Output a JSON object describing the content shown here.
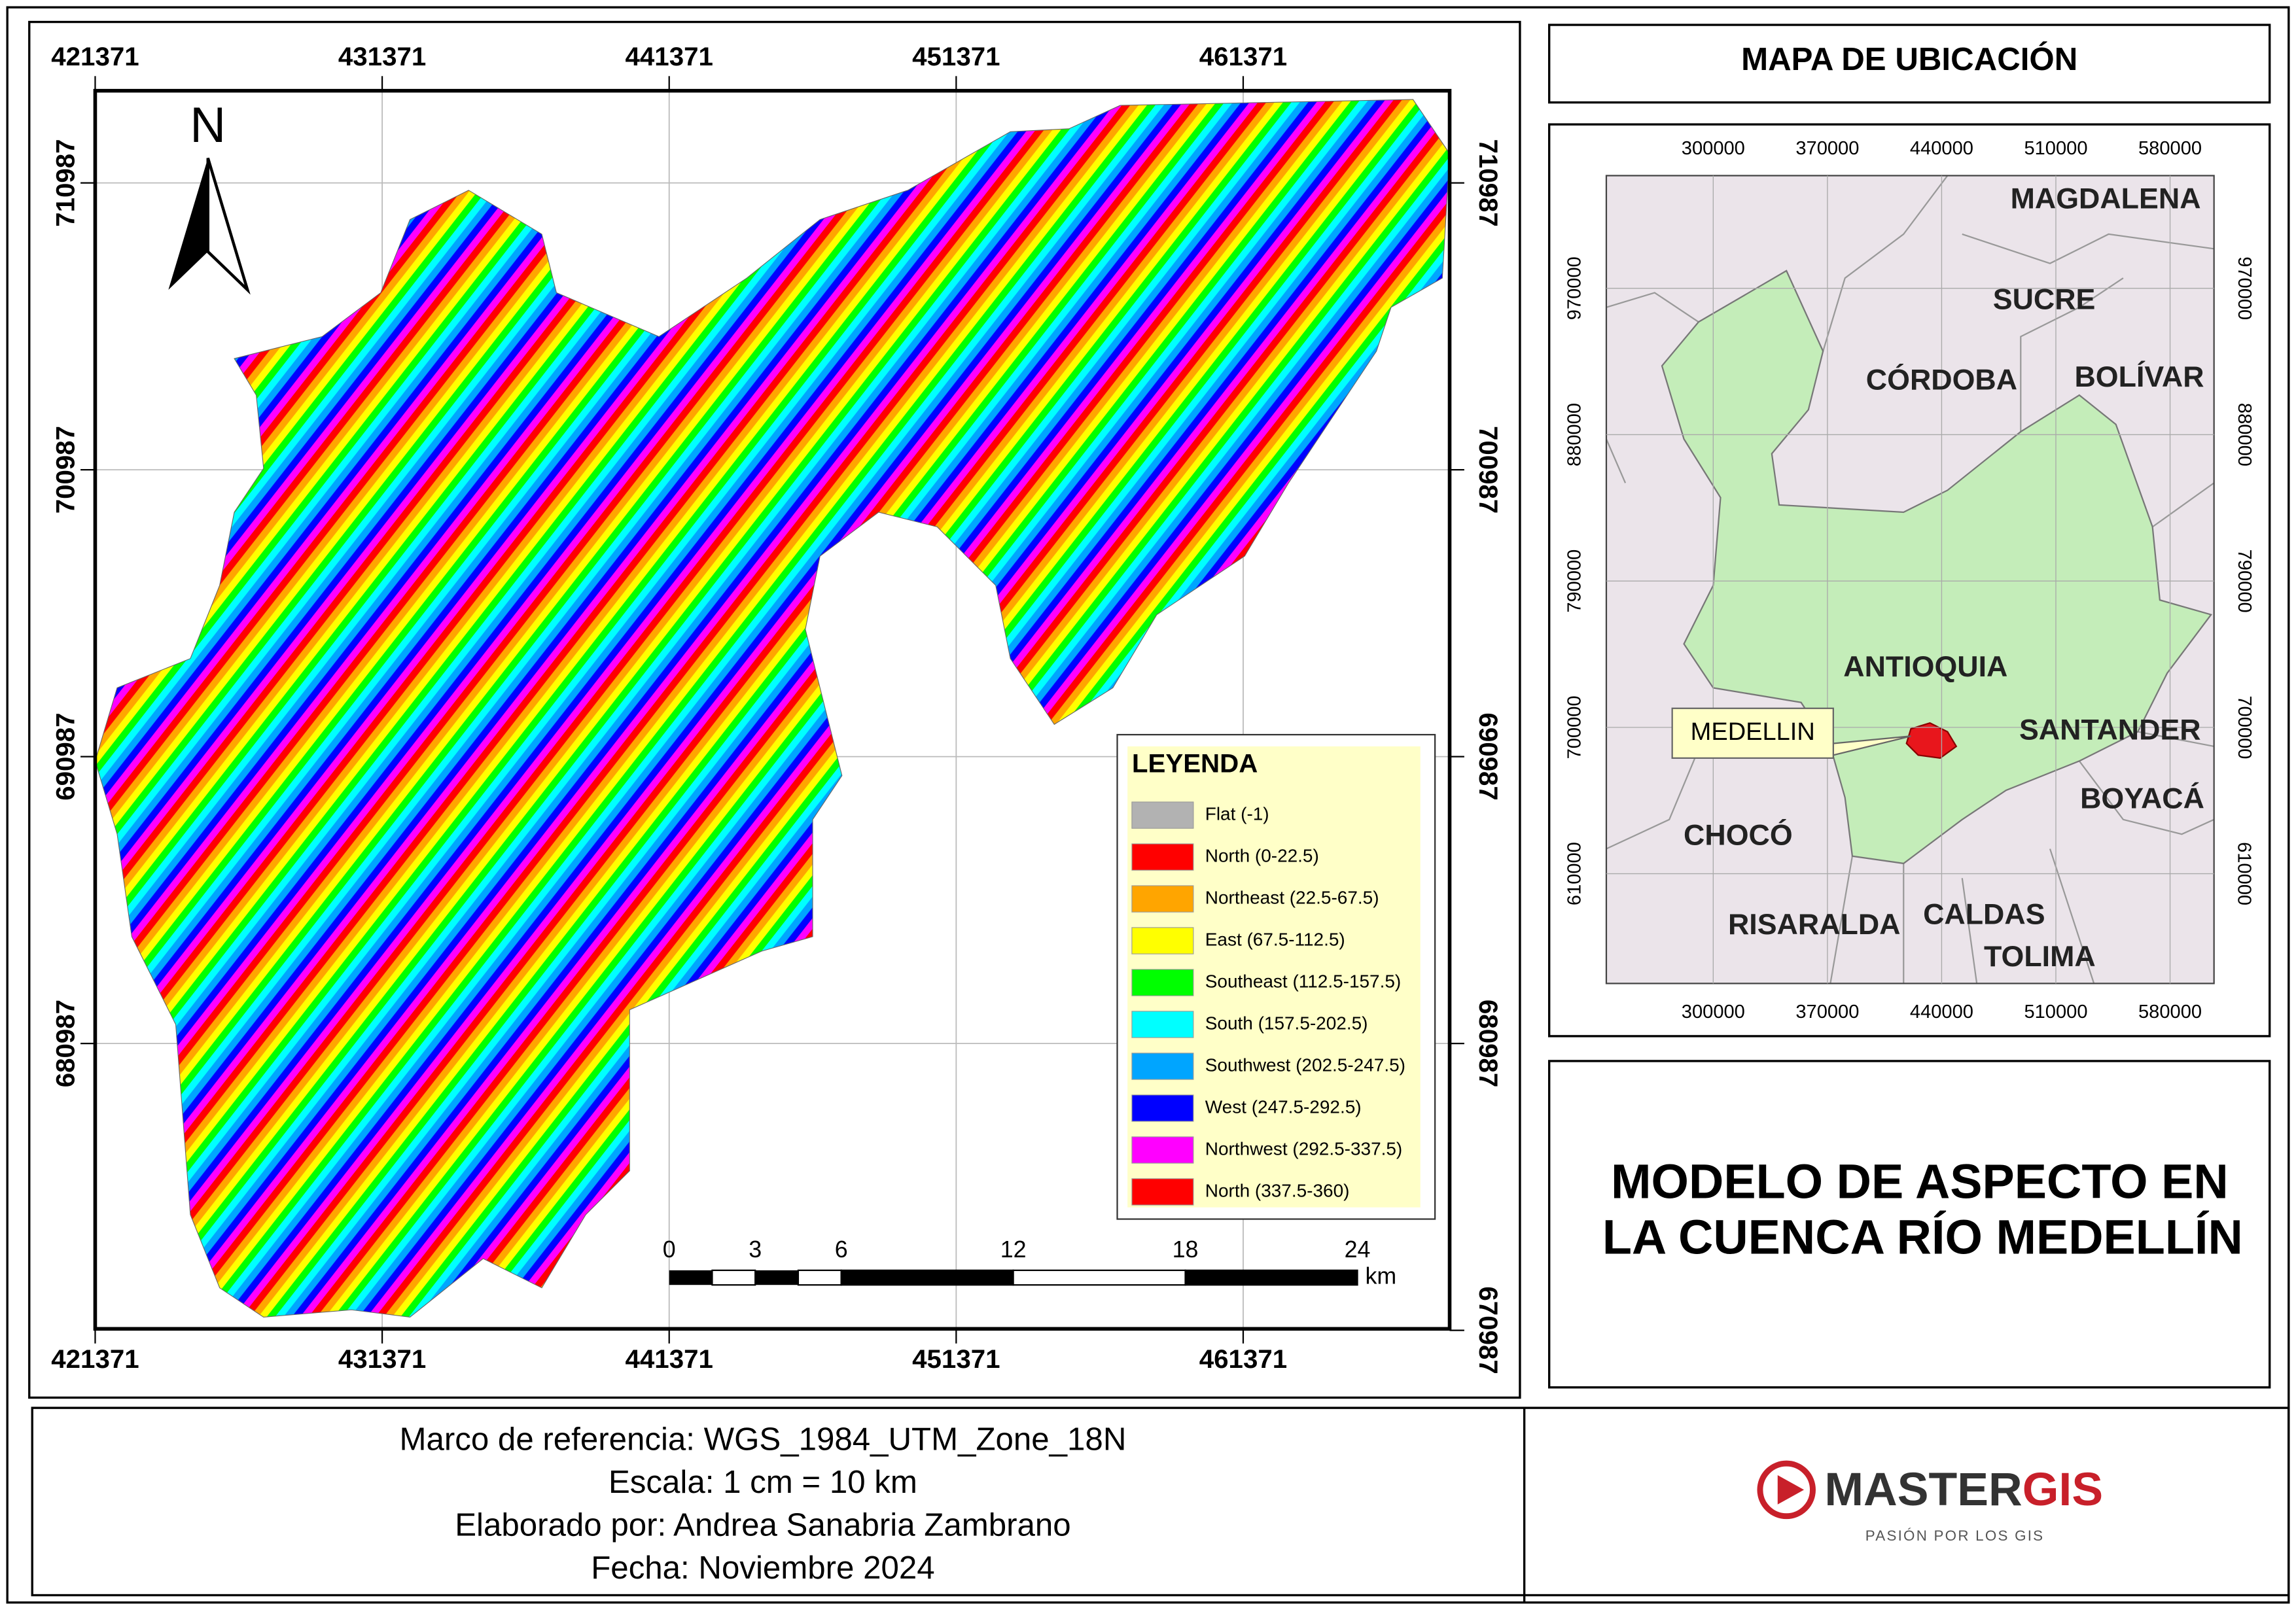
{
  "map": {
    "x_ticks": [
      421371,
      431371,
      441371,
      451371,
      461371
    ],
    "y_ticks": [
      710987,
      700987,
      690987,
      680987,
      670987
    ],
    "north": "N",
    "legend": {
      "title": "LEYENDA",
      "items": [
        {
          "label": "Flat (-1)",
          "color": "#b2b2b2"
        },
        {
          "label": "North (0-22.5)",
          "color": "#ff0000"
        },
        {
          "label": "Northeast (22.5-67.5)",
          "color": "#ffa500"
        },
        {
          "label": "East (67.5-112.5)",
          "color": "#ffff00"
        },
        {
          "label": "Southeast (112.5-157.5)",
          "color": "#00ff00"
        },
        {
          "label": "South (157.5-202.5)",
          "color": "#00ffff"
        },
        {
          "label": "Southwest (202.5-247.5)",
          "color": "#00a5ff"
        },
        {
          "label": "West (247.5-292.5)",
          "color": "#0000ff"
        },
        {
          "label": "Northwest (292.5-337.5)",
          "color": "#ff00ff"
        },
        {
          "label": "North (337.5-360)",
          "color": "#ff0000"
        }
      ]
    },
    "scale_bar": {
      "ticks": [
        0,
        3,
        6,
        12,
        18,
        24
      ],
      "unit": "km"
    }
  },
  "inset": {
    "title": "MAPA DE UBICACIÓN",
    "x_ticks": [
      300000,
      370000,
      440000,
      510000,
      580000
    ],
    "y_ticks": [
      970000,
      880000,
      790000,
      700000,
      610000
    ],
    "labels": [
      "MAGDALENA",
      "SUCRE",
      "CÓRDOBA",
      "BOLÍVAR",
      "ANTIOQUIA",
      "SANTANDER",
      "BOYACÁ",
      "CHOCÓ",
      "RISARALDA",
      "CALDAS",
      "TOLIMA"
    ],
    "callout": "MEDELLIN"
  },
  "title": [
    "MODELO DE ASPECTO EN",
    "LA CUENCA RÍO MEDELLÍN"
  ],
  "footer": [
    "Marco de referencia: WGS_1984_UTM_Zone_18N",
    "Escala: 1 cm = 10 km",
    "Elaborado por: Andrea Sanabria Zambrano",
    "Fecha: Noviembre 2024"
  ],
  "logo": {
    "name": "MASTER",
    "accent": "GIS",
    "tagline": "PASIÓN POR LOS GIS"
  }
}
